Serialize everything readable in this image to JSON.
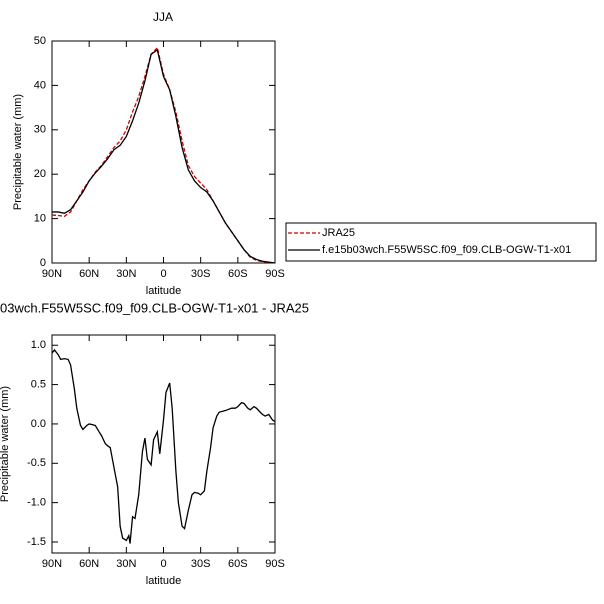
{
  "chart_data": [
    {
      "type": "line",
      "title": "JJA",
      "xlabel": "latitude",
      "ylabel": "Precipitable water (mm)",
      "xlim": [
        90,
        -90
      ],
      "xticks": [
        {
          "value": 90,
          "label": "90N"
        },
        {
          "value": 60,
          "label": "60N"
        },
        {
          "value": 30,
          "label": "30N"
        },
        0,
        {
          "value": -30,
          "label": "30S"
        },
        {
          "value": -60,
          "label": "60S"
        },
        {
          "value": -90,
          "label": "90S"
        }
      ],
      "ylim": [
        0,
        50
      ],
      "yticks": [
        0,
        10,
        20,
        30,
        40,
        50
      ],
      "grid": false,
      "legend": "outside right",
      "x": [
        90,
        85,
        80,
        75,
        70,
        65,
        60,
        55,
        50,
        45,
        40,
        35,
        30,
        25,
        20,
        15,
        10,
        5,
        0,
        -5,
        -10,
        -15,
        -20,
        -25,
        -30,
        -35,
        -40,
        -45,
        -50,
        -55,
        -60,
        -65,
        -70,
        -75,
        -80,
        -85,
        -90
      ],
      "series": [
        {
          "name": "JRA25",
          "color": "#cc0000",
          "linestyle": "dashed",
          "values": [
            10.8,
            10.7,
            10.5,
            11.5,
            14,
            16.5,
            18.5,
            20.5,
            22,
            24,
            26,
            27.5,
            30,
            34,
            37.5,
            42,
            47,
            48.5,
            42.5,
            39,
            34,
            27.5,
            22,
            19.5,
            18,
            16.5,
            14,
            11.5,
            9,
            7,
            5,
            3,
            1.3,
            0.6,
            0.3,
            0.1,
            0
          ]
        },
        {
          "name": "f.e15b03wch.F55W5SC.f09_f09.CLB-OGW-T1-x01",
          "color": "#000000",
          "linestyle": "solid",
          "values": [
            11.5,
            11.5,
            11.2,
            12,
            14,
            16,
            18.5,
            20.3,
            21.8,
            23.5,
            25.5,
            26.5,
            28.5,
            32,
            36,
            41,
            47,
            48,
            42,
            39,
            33,
            26,
            21,
            18.5,
            17,
            16,
            14,
            11.5,
            9,
            7,
            5,
            3,
            1.5,
            0.8,
            0.4,
            0.2,
            0
          ]
        }
      ]
    },
    {
      "type": "line",
      "title": "03wch.F55W5SC.f09_f09.CLB-OGW-T1-x01 - JRA25",
      "xlabel": "latitude",
      "ylabel": "Precipitable water (mm)",
      "xlim": [
        90,
        -90
      ],
      "xticks": [
        {
          "value": 90,
          "label": "90N"
        },
        {
          "value": 60,
          "label": "60N"
        },
        {
          "value": 30,
          "label": "30N"
        },
        0,
        {
          "value": -30,
          "label": "30S"
        },
        {
          "value": -60,
          "label": "60S"
        },
        {
          "value": -90,
          "label": "90S"
        }
      ],
      "ylim": [
        -1.64,
        1.13
      ],
      "yticks": [
        {
          "value": 1,
          "label": "1.0"
        },
        0.5,
        {
          "value": 0,
          "label": "0.0"
        },
        -0.5,
        {
          "value": -1,
          "label": "-1.0"
        },
        -1.5
      ],
      "grid": false,
      "x": [
        90,
        88,
        85,
        83,
        80,
        77,
        75,
        72,
        70,
        67,
        65,
        62,
        60,
        57,
        55,
        52,
        50,
        47,
        45,
        43,
        40,
        37,
        35,
        33,
        30,
        28,
        27,
        25,
        23,
        20,
        17,
        15,
        13,
        10,
        8,
        5,
        3,
        0,
        -2,
        -5,
        -7,
        -10,
        -12,
        -15,
        -17,
        -20,
        -23,
        -25,
        -28,
        -30,
        -33,
        -35,
        -38,
        -40,
        -43,
        -45,
        -50,
        -55,
        -58,
        -60,
        -63,
        -65,
        -68,
        -70,
        -73,
        -75,
        -78,
        -80,
        -82,
        -85,
        -88,
        -90
      ],
      "series": [
        {
          "color": "#000000",
          "linestyle": "solid",
          "values": [
            0.9,
            0.94,
            0.88,
            0.82,
            0.83,
            0.82,
            0.75,
            0.45,
            0.2,
            -0.02,
            -0.07,
            -0.02,
            0.0,
            -0.01,
            -0.02,
            -0.1,
            -0.15,
            -0.25,
            -0.28,
            -0.3,
            -0.55,
            -0.8,
            -1.3,
            -1.45,
            -1.48,
            -1.42,
            -1.52,
            -1.18,
            -1.2,
            -0.9,
            -0.35,
            -0.18,
            -0.45,
            -0.52,
            -0.2,
            -0.1,
            -0.38,
            0.05,
            0.4,
            0.52,
            0.2,
            -0.6,
            -1.0,
            -1.3,
            -1.33,
            -1.1,
            -0.9,
            -0.87,
            -0.88,
            -0.9,
            -0.85,
            -0.6,
            -0.3,
            -0.05,
            0.1,
            0.15,
            0.17,
            0.2,
            0.2,
            0.22,
            0.27,
            0.26,
            0.2,
            0.18,
            0.22,
            0.2,
            0.15,
            0.12,
            0.1,
            0.12,
            0.05,
            0.03
          ]
        }
      ]
    }
  ]
}
